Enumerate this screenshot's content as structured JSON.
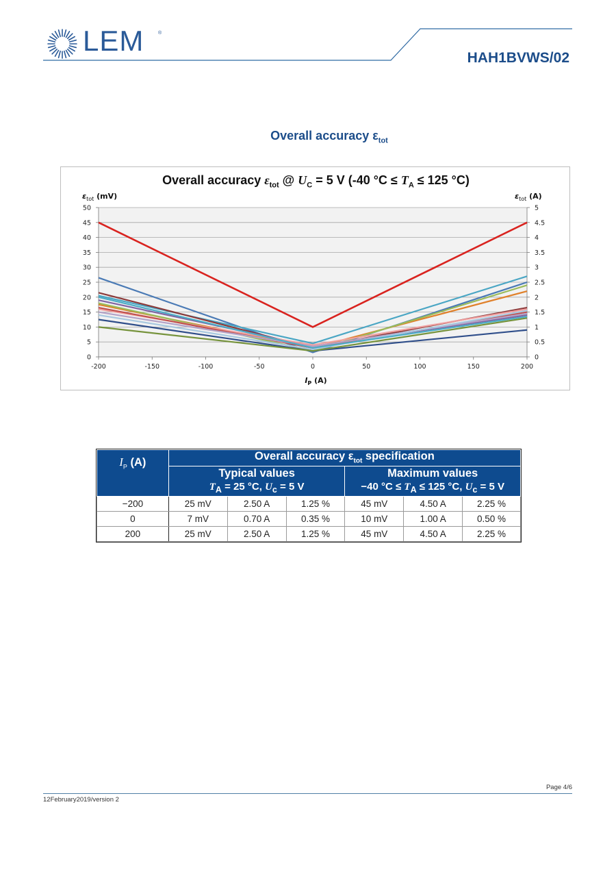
{
  "header": {
    "logo_text": "LEM",
    "logo_registered": "®",
    "product_name": "HAH1BVWS/02"
  },
  "section": {
    "title": "Overall accuracy ε",
    "title_sub": "tot"
  },
  "chart_data": {
    "type": "line",
    "title": "Overall accuracy εtot @ UC = 5 V (-40 °C ≤ TA ≤ 125 °C)",
    "title_parts": {
      "a": "Overall accuracy ",
      "eps": "ε",
      "eps_sub": "tot",
      "at": " @ ",
      "u": "U",
      "u_sub": "C",
      "mid": " = 5 V (-40 °C ≤ ",
      "t": "T",
      "t_sub": "A",
      "end": " ≤ 125 °C)"
    },
    "ylabel_left": {
      "eps": "ε",
      "sub": "tot",
      "unit": " (mV)"
    },
    "ylabel_right": {
      "eps": "ε",
      "sub": "tot",
      "unit": "  (A)"
    },
    "xlabel": {
      "i": "I",
      "sub": "P",
      "unit": " (A)"
    },
    "xlim": [
      -200,
      200
    ],
    "ylim_left": [
      0,
      50
    ],
    "ylim_right": [
      0,
      5
    ],
    "xticks": [
      "-200",
      "-150",
      "-100",
      "-50",
      "0",
      "50",
      "100",
      "150",
      "200"
    ],
    "yticks_left": [
      "0",
      "5",
      "10",
      "15",
      "20",
      "25",
      "30",
      "35",
      "40",
      "45",
      "50"
    ],
    "yticks_right": [
      "0",
      "0.5",
      "1",
      "1.5",
      "2",
      "2.5",
      "3",
      "3.5",
      "4",
      "4.5",
      "5"
    ],
    "grid": true,
    "x": [
      -200,
      0,
      200
    ],
    "series": [
      {
        "color": "#d9231f",
        "values": [
          45,
          10,
          45
        ],
        "emphasis": true
      },
      {
        "color": "#4a7ab5",
        "values": [
          26.5,
          1.5,
          25
        ]
      },
      {
        "color": "#4aa6c4",
        "values": [
          20.5,
          4.5,
          27
        ]
      },
      {
        "color": "#8b3a3a",
        "values": [
          21.5,
          3,
          16.5
        ]
      },
      {
        "color": "#8064a2",
        "values": [
          19,
          3.5,
          14
        ]
      },
      {
        "color": "#e0812b",
        "values": [
          17.5,
          3,
          22
        ]
      },
      {
        "color": "#9bbb59",
        "values": [
          18,
          2,
          24
        ]
      },
      {
        "color": "#f0a0a0",
        "values": [
          16,
          4,
          16
        ]
      },
      {
        "color": "#c0504d",
        "values": [
          16.5,
          3,
          15
        ]
      },
      {
        "color": "#b3a2c7",
        "values": [
          15,
          3.5,
          14.5
        ]
      },
      {
        "color": "#a8c8e0",
        "values": [
          14,
          2.5,
          15.5
        ]
      },
      {
        "color": "#2f4e8a",
        "values": [
          12.5,
          2,
          9
        ]
      },
      {
        "color": "#76933c",
        "values": [
          10,
          2,
          13
        ]
      },
      {
        "color": "#4bacc6",
        "values": [
          20,
          3,
          13.5
        ]
      }
    ]
  },
  "table": {
    "main_header": "Overall accuracy ε",
    "main_header_sub": "tot",
    "main_header_end": " specification",
    "ip_header": {
      "i": "I",
      "sub": "P",
      "unit": "  (A)"
    },
    "typical": {
      "title": "Typical values",
      "t": "T",
      "t_sub": "A",
      "cond1": " = 25 °C, ",
      "u": "U",
      "u_sub": "c",
      "cond2": " = 5 V"
    },
    "maximum": {
      "title": "Maximum values",
      "pre": "−40 °C ≤ ",
      "t": "T",
      "t_sub": "A",
      "cond1": " ≤ 125 °C, ",
      "u": "U",
      "u_sub": "c",
      "cond2": " = 5 V"
    },
    "rows": [
      [
        "−200",
        "25 mV",
        "2.50 A",
        "1.25 %",
        "45 mV",
        "4.50 A",
        "2.25 %"
      ],
      [
        "0",
        "7 mV",
        "0.70 A",
        "0.35 %",
        "10 mV",
        "1.00 A",
        "0.50 %"
      ],
      [
        "200",
        "25 mV",
        "2.50 A",
        "1.25 %",
        "45 mV",
        "4.50 A",
        "2.25 %"
      ]
    ]
  },
  "footer": {
    "page": "Page 4/6",
    "date": "12February2019/version 2"
  },
  "colors": {
    "brand_blue": "#1c4d8a",
    "table_header": "#0e4b8f",
    "accent_red": "#d9231f"
  }
}
